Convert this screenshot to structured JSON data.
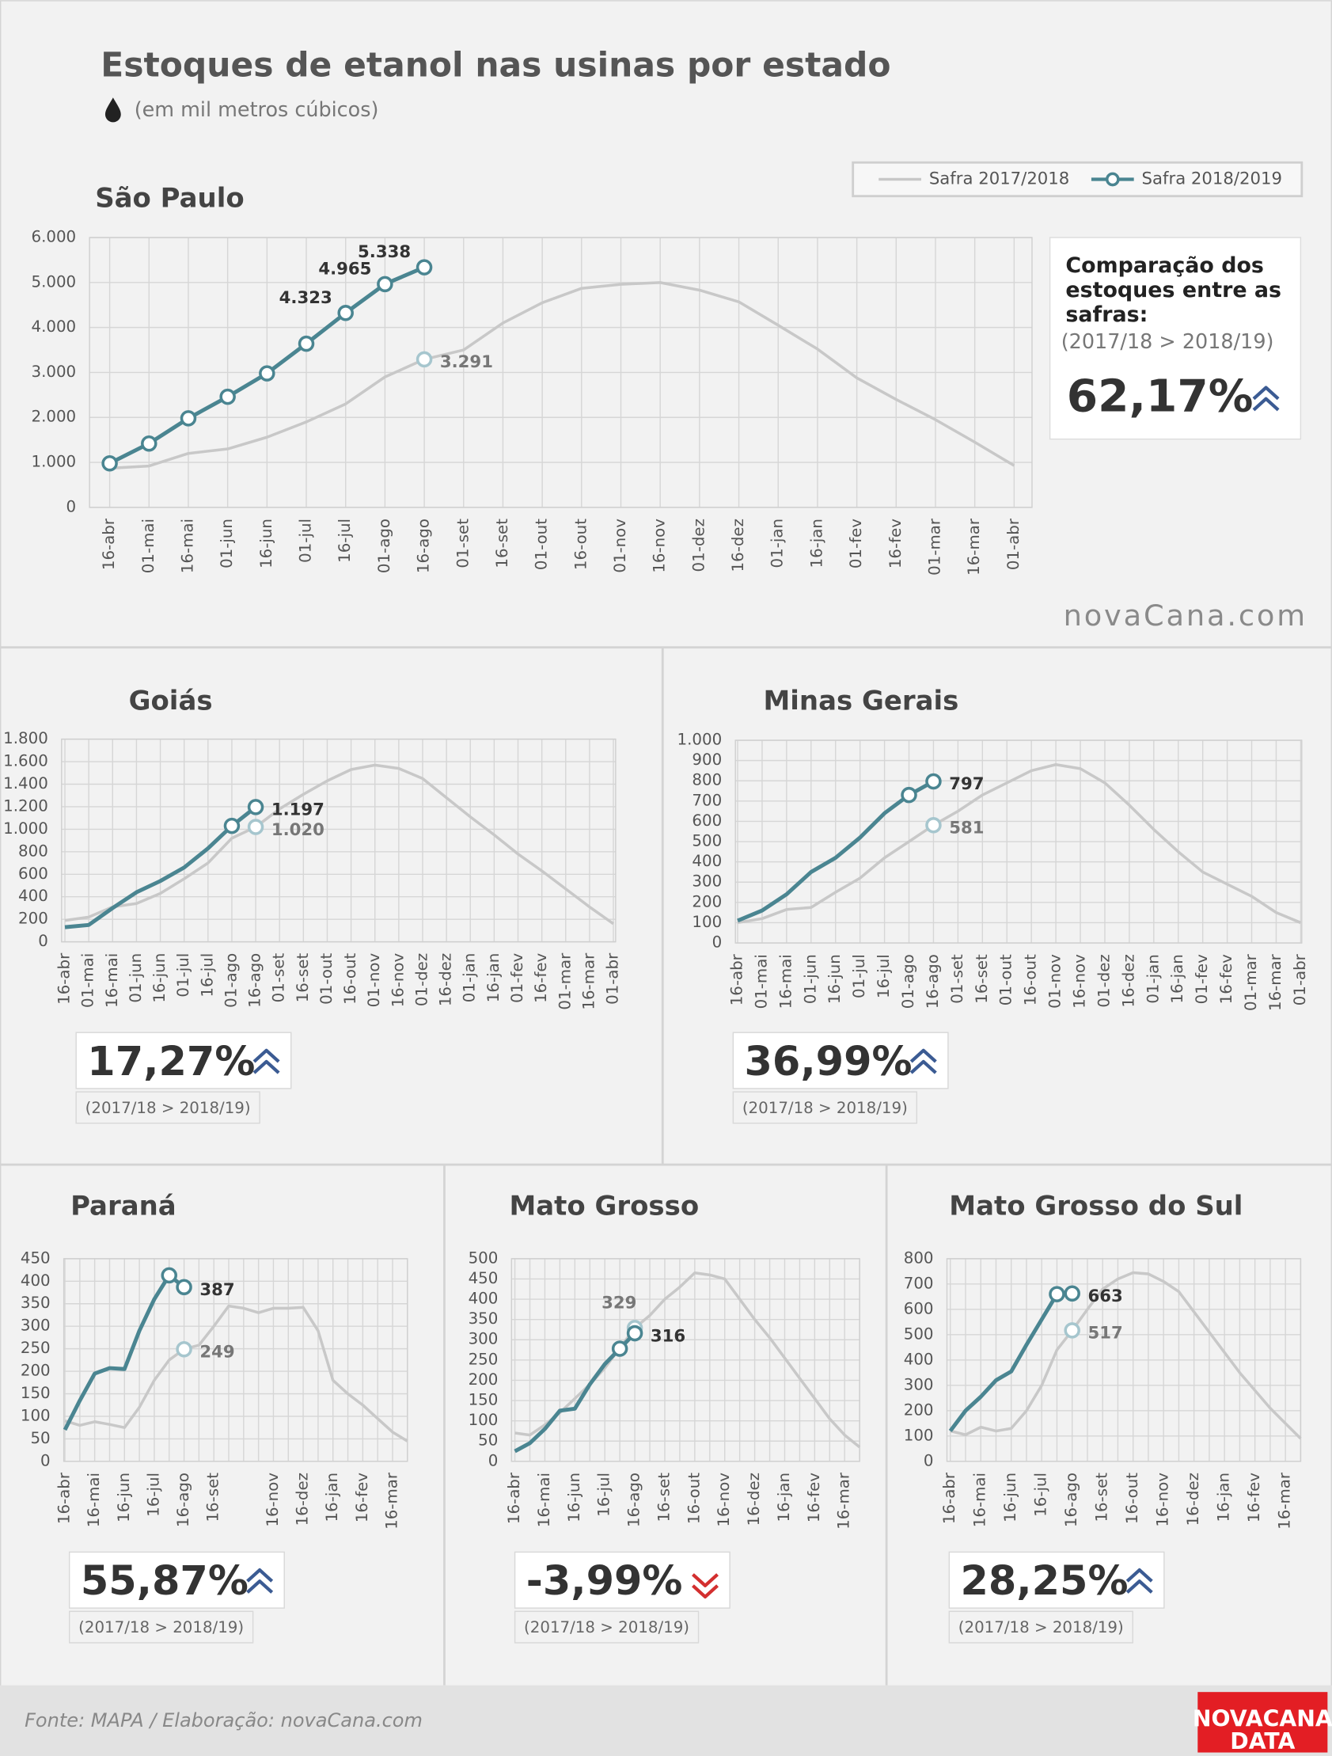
{
  "title": "Estoques de etanol nas usinas por estado",
  "subtitle": "(em mil metros cúbicos)",
  "watermark": "novaCana.com",
  "source": "Fonte: MAPA  / Elaboração: novaCana.com",
  "brand": [
    "NOVACANA",
    "DATA"
  ],
  "chart_data": [
    {
      "type": "line",
      "title": "São Paulo",
      "legend": "top-right",
      "grid": true,
      "categories": [
        "16-abr",
        "01-mai",
        "16-mai",
        "01-jun",
        "16-jun",
        "01-jul",
        "16-jul",
        "01-ago",
        "16-ago",
        "01-set",
        "16-set",
        "01-out",
        "16-out",
        "01-nov",
        "16-nov",
        "01-dez",
        "16-dez",
        "01-jan",
        "16-jan",
        "01-fev",
        "16-fev",
        "01-mar",
        "16-mar",
        "01-abr"
      ],
      "series": [
        {
          "name": "Safra 2017/2018",
          "color": "#c8c8c8",
          "values": [
            870,
            920,
            1200,
            1300,
            1560,
            1900,
            2300,
            2900,
            3291,
            3500,
            4100,
            4550,
            4870,
            4960,
            5000,
            4830,
            4570,
            4050,
            3520,
            2880,
            2400,
            1950,
            1450,
            930
          ],
          "value_labels": [
            null,
            null,
            null,
            null,
            null,
            null,
            null,
            null,
            "3.291",
            null,
            null,
            null,
            null,
            null,
            null,
            null,
            null,
            null,
            null,
            null,
            null,
            null,
            null,
            null
          ]
        },
        {
          "name": "Safra 2018/2019",
          "color": "#4a8591",
          "markers": "all",
          "values": [
            980,
            1420,
            1980,
            2460,
            2980,
            3640,
            4323,
            4965,
            5338,
            null,
            null,
            null,
            null,
            null,
            null,
            null,
            null,
            null,
            null,
            null,
            null,
            null,
            null,
            null
          ],
          "value_labels": [
            null,
            null,
            null,
            null,
            null,
            null,
            "4.323",
            "4.965",
            "5.338",
            null,
            null,
            null,
            null,
            null,
            null,
            null,
            null,
            null,
            null,
            null,
            null,
            null,
            null,
            null
          ]
        }
      ],
      "ylim": [
        0,
        6000
      ],
      "yticks": [
        0,
        {
          "value": 1000,
          "label": "1.000"
        },
        {
          "value": 2000,
          "label": "2.000"
        },
        {
          "value": 3000,
          "label": "3.000"
        },
        {
          "value": 4000,
          "label": "4.000"
        },
        {
          "value": 5000,
          "label": "5.000"
        },
        {
          "value": 6000,
          "label": "6.000"
        }
      ],
      "comparison": {
        "title": "Comparação dos estoques entre as safras:",
        "note": "(2017/18 > 2018/19)",
        "value": 62.17,
        "value_label": "62,17%"
      }
    },
    {
      "type": "line",
      "title": "Goiás",
      "grid": true,
      "categories": [
        "16-abr",
        "01-mai",
        "16-mai",
        "01-jun",
        "16-jun",
        "01-jul",
        "16-jul",
        "01-ago",
        "16-ago",
        "01-set",
        "16-set",
        "01-out",
        "16-out",
        "01-nov",
        "16-nov",
        "01-dez",
        "16-dez",
        "01-jan",
        "16-jan",
        "01-fev",
        "16-fev",
        "01-mar",
        "16-mar",
        "01-abr"
      ],
      "series": [
        {
          "color": "#c8c8c8",
          "values": [
            190,
            220,
            310,
            340,
            430,
            560,
            700,
            920,
            1020,
            1180,
            1310,
            1430,
            1530,
            1570,
            1540,
            1450,
            1280,
            1110,
            950,
            780,
            630,
            470,
            310,
            160
          ],
          "value_labels": [
            null,
            null,
            null,
            null,
            null,
            null,
            null,
            null,
            "1.020",
            null,
            null,
            null,
            null,
            null,
            null,
            null,
            null,
            null,
            null,
            null,
            null,
            null,
            null,
            null
          ]
        },
        {
          "color": "#4a8591",
          "values": [
            130,
            150,
            300,
            440,
            540,
            660,
            830,
            1030,
            1197,
            null,
            null,
            null,
            null,
            null,
            null,
            null,
            null,
            null,
            null,
            null,
            null,
            null,
            null,
            null
          ],
          "value_labels": [
            null,
            null,
            null,
            null,
            null,
            null,
            null,
            null,
            "1.197",
            null,
            null,
            null,
            null,
            null,
            null,
            null,
            null,
            null,
            null,
            null,
            null,
            null,
            null,
            null
          ]
        }
      ],
      "ylim": [
        0,
        1800
      ],
      "yticks": [
        0,
        200,
        400,
        600,
        800,
        {
          "value": 1000,
          "label": "1.000"
        },
        {
          "value": 1200,
          "label": "1.200"
        },
        {
          "value": 1400,
          "label": "1.400"
        },
        {
          "value": 1600,
          "label": "1.600"
        },
        {
          "value": 1800,
          "label": "1.800"
        }
      ],
      "comparison": {
        "note": "(2017/18 > 2018/19)",
        "value": 17.27,
        "value_label": "17,27%"
      }
    },
    {
      "type": "line",
      "title": "Minas Gerais",
      "grid": true,
      "categories": [
        "16-abr",
        "01-mai",
        "16-mai",
        "01-jun",
        "16-jun",
        "01-jul",
        "16-jul",
        "01-ago",
        "16-ago",
        "01-set",
        "16-set",
        "01-out",
        "16-out",
        "01-nov",
        "16-nov",
        "01-dez",
        "16-dez",
        "01-jan",
        "16-jan",
        "01-fev",
        "16-fev",
        "01-mar",
        "16-mar",
        "01-abr"
      ],
      "series": [
        {
          "color": "#c8c8c8",
          "values": [
            100,
            120,
            165,
            175,
            250,
            320,
            420,
            500,
            581,
            650,
            730,
            790,
            850,
            880,
            860,
            790,
            680,
            560,
            450,
            350,
            290,
            230,
            150,
            100
          ],
          "value_labels": [
            null,
            null,
            null,
            null,
            null,
            null,
            null,
            null,
            "581",
            null,
            null,
            null,
            null,
            null,
            null,
            null,
            null,
            null,
            null,
            null,
            null,
            null,
            null,
            null
          ]
        },
        {
          "color": "#4a8591",
          "values": [
            110,
            160,
            240,
            350,
            420,
            520,
            640,
            730,
            797,
            null,
            null,
            null,
            null,
            null,
            null,
            null,
            null,
            null,
            null,
            null,
            null,
            null,
            null,
            null
          ],
          "value_labels": [
            null,
            null,
            null,
            null,
            null,
            null,
            null,
            null,
            "797",
            null,
            null,
            null,
            null,
            null,
            null,
            null,
            null,
            null,
            null,
            null,
            null,
            null,
            null,
            null
          ]
        }
      ],
      "ylim": [
        0,
        1000
      ],
      "yticks": [
        0,
        100,
        200,
        300,
        400,
        500,
        600,
        700,
        800,
        900,
        {
          "value": 1000,
          "label": "1.000"
        }
      ],
      "comparison": {
        "note": "(2017/18 > 2018/19)",
        "value": 36.99,
        "value_label": "36,99%"
      }
    },
    {
      "type": "line",
      "title": "Paraná",
      "grid": true,
      "categories": [
        "16-abr",
        null,
        "16-mai",
        null,
        "16-jun",
        null,
        "16-jul",
        null,
        "16-ago",
        null,
        "16-set",
        null,
        null,
        null,
        "16-nov",
        null,
        "16-dez",
        null,
        "16-jan",
        null,
        "16-fev",
        null,
        "16-mar",
        null
      ],
      "series": [
        {
          "color": "#c8c8c8",
          "values": [
            90,
            80,
            88,
            82,
            75,
            120,
            180,
            225,
            249,
            258,
            300,
            345,
            340,
            330,
            340,
            340,
            342,
            290,
            180,
            150,
            125,
            95,
            65,
            45
          ],
          "value_labels": [
            null,
            null,
            null,
            null,
            null,
            null,
            null,
            null,
            "249",
            null,
            null,
            null,
            null,
            null,
            null,
            null,
            null,
            null,
            null,
            null,
            null,
            null,
            null,
            null
          ]
        },
        {
          "color": "#4a8591",
          "values": [
            70,
            135,
            195,
            207,
            205,
            290,
            360,
            413,
            387,
            null,
            null,
            null,
            null,
            null,
            null,
            null,
            null,
            null,
            null,
            null,
            null,
            null,
            null,
            null
          ],
          "value_labels": [
            null,
            null,
            null,
            null,
            null,
            null,
            null,
            null,
            "387",
            null,
            null,
            null,
            null,
            null,
            null,
            null,
            null,
            null,
            null,
            null,
            null,
            null,
            null,
            null
          ]
        }
      ],
      "ylim": [
        0,
        450
      ],
      "yticks": [
        0,
        50,
        100,
        150,
        200,
        250,
        300,
        350,
        400,
        450
      ],
      "comparison": {
        "note": "(2017/18 > 2018/19)",
        "value": 55.87,
        "value_label": "55,87%"
      }
    },
    {
      "type": "line",
      "title": "Mato Grosso",
      "grid": true,
      "categories": [
        "16-abr",
        null,
        "16-mai",
        null,
        "16-jun",
        null,
        "16-jul",
        null,
        "16-ago",
        null,
        "16-set",
        null,
        "16-out",
        null,
        "16-nov",
        null,
        "16-dez",
        null,
        "16-jan",
        null,
        "16-fev",
        null,
        "16-mar",
        null
      ],
      "series": [
        {
          "color": "#c8c8c8",
          "values": [
            70,
            65,
            90,
            120,
            155,
            190,
            230,
            280,
            329,
            360,
            400,
            430,
            465,
            460,
            450,
            400,
            350,
            305,
            255,
            205,
            155,
            105,
            65,
            35
          ],
          "value_labels": [
            null,
            null,
            null,
            null,
            null,
            null,
            null,
            null,
            "329",
            null,
            null,
            null,
            null,
            null,
            null,
            null,
            null,
            null,
            null,
            null,
            null,
            null,
            null,
            null
          ]
        },
        {
          "color": "#4a8591",
          "values": [
            25,
            45,
            80,
            125,
            130,
            190,
            240,
            278,
            316,
            null,
            null,
            null,
            null,
            null,
            null,
            null,
            null,
            null,
            null,
            null,
            null,
            null,
            null,
            null
          ],
          "value_labels": [
            null,
            null,
            null,
            null,
            null,
            null,
            null,
            null,
            "316",
            null,
            null,
            null,
            null,
            null,
            null,
            null,
            null,
            null,
            null,
            null,
            null,
            null,
            null,
            null
          ]
        }
      ],
      "ylim": [
        0,
        500
      ],
      "yticks": [
        0,
        50,
        100,
        150,
        200,
        250,
        300,
        350,
        400,
        450,
        500
      ],
      "comparison": {
        "note": "(2017/18 > 2018/19)",
        "value": -3.99,
        "value_label": "-3,99%"
      }
    },
    {
      "type": "line",
      "title": "Mato Grosso do Sul",
      "grid": true,
      "categories": [
        "16-abr",
        null,
        "16-mai",
        null,
        "16-jun",
        null,
        "16-jul",
        null,
        "16-ago",
        null,
        "16-set",
        null,
        "16-out",
        null,
        "16-nov",
        null,
        "16-dez",
        null,
        "16-jan",
        null,
        "16-fev",
        null,
        "16-mar",
        null
      ],
      "series": [
        {
          "color": "#c8c8c8",
          "values": [
            120,
            105,
            135,
            120,
            130,
            200,
            300,
            440,
            517,
            600,
            680,
            720,
            745,
            740,
            710,
            670,
            590,
            510,
            430,
            350,
            280,
            210,
            150,
            90
          ],
          "value_labels": [
            null,
            null,
            null,
            null,
            null,
            null,
            null,
            null,
            "517",
            null,
            null,
            null,
            null,
            null,
            null,
            null,
            null,
            null,
            null,
            null,
            null,
            null,
            null,
            null
          ]
        },
        {
          "color": "#4a8591",
          "values": [
            120,
            200,
            255,
            320,
            355,
            460,
            560,
            660,
            663,
            null,
            null,
            null,
            null,
            null,
            null,
            null,
            null,
            null,
            null,
            null,
            null,
            null,
            null,
            null
          ],
          "value_labels": [
            null,
            null,
            null,
            null,
            null,
            null,
            null,
            null,
            "663",
            null,
            null,
            null,
            null,
            null,
            null,
            null,
            null,
            null,
            null,
            null,
            null,
            null,
            null,
            null
          ]
        }
      ],
      "ylim": [
        0,
        800
      ],
      "yticks": [
        0,
        100,
        200,
        300,
        400,
        500,
        600,
        700,
        800
      ],
      "comparison": {
        "note": "(2017/18 > 2018/19)",
        "value": 28.25,
        "value_label": "28,25%"
      }
    }
  ]
}
